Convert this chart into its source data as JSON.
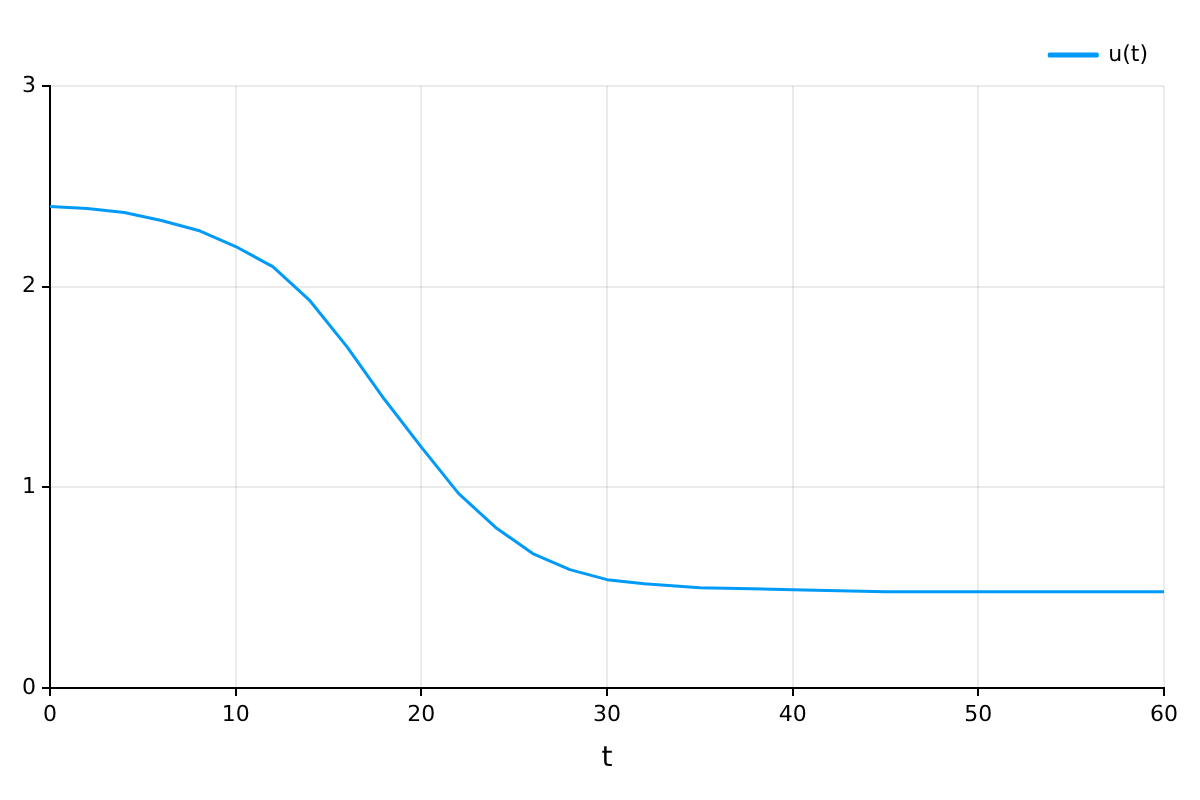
{
  "chart_data": {
    "type": "line",
    "xlabel": "t",
    "x": [
      0,
      2,
      4,
      6,
      8,
      10,
      12,
      14,
      16,
      18,
      20,
      22,
      24,
      26,
      28,
      30,
      32,
      35,
      40,
      45,
      50,
      55,
      60
    ],
    "series": [
      {
        "name": "u(t)",
        "color": "#009af9",
        "values": [
          2.4,
          2.39,
          2.37,
          2.33,
          2.28,
          2.2,
          2.1,
          1.93,
          1.7,
          1.44,
          1.2,
          0.97,
          0.8,
          0.67,
          0.59,
          0.54,
          0.52,
          0.5,
          0.49,
          0.48,
          0.48,
          0.48,
          0.48
        ]
      }
    ],
    "xlim": [
      0,
      60
    ],
    "xticks": [
      0,
      10,
      20,
      30,
      40,
      50,
      60
    ],
    "ylim": [
      0,
      3
    ],
    "yticks": [
      0,
      1,
      2,
      3
    ],
    "grid": true,
    "legend": "top right",
    "marker": "none",
    "line_style": "solid"
  }
}
